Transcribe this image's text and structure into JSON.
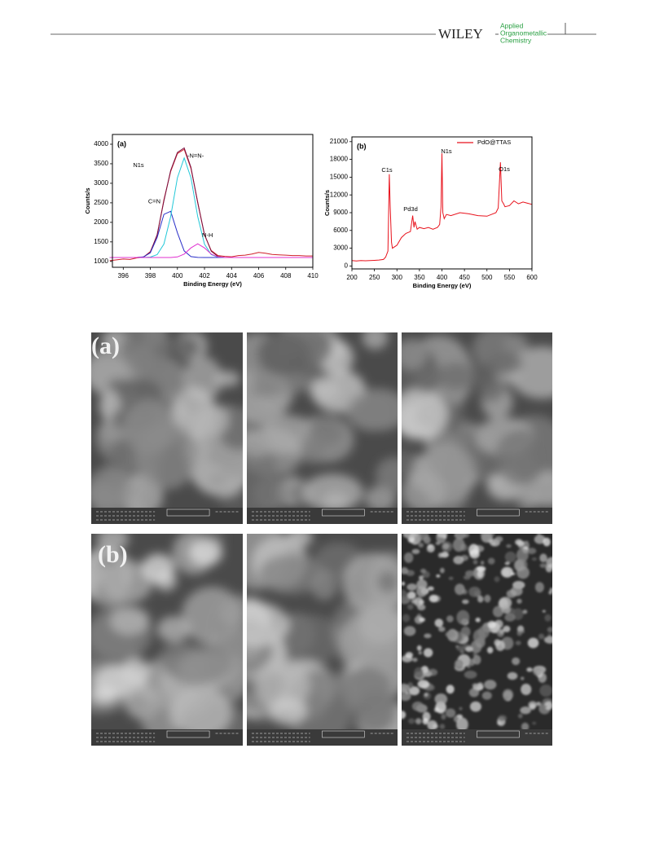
{
  "header": {
    "publisher": "WILEY",
    "journal_lines": [
      "Applied",
      "Organometallic",
      "Chemistry"
    ]
  },
  "chart_data": [
    {
      "type": "line",
      "panel": "(a)",
      "x_label": "Binding Energy (eV)",
      "y_label": "Counts/s",
      "annotations": [
        "N1s"
      ],
      "legend": false,
      "xlim": [
        395.2,
        410
      ],
      "ylim": [
        850,
        4250
      ],
      "xticks": [
        396,
        398,
        400,
        402,
        404,
        406,
        408,
        410
      ],
      "yticks": [
        1000,
        1500,
        2000,
        2500,
        3000,
        3500,
        4000
      ],
      "x": [
        395,
        395.5,
        396,
        396.5,
        397,
        397.5,
        398,
        398.5,
        399,
        399.5,
        400,
        400.5,
        401,
        401.5,
        402,
        402.5,
        403,
        403.5,
        404,
        404.5,
        405,
        405.5,
        406,
        406.5,
        407,
        407.5,
        408,
        408.5,
        409,
        409.5,
        410
      ],
      "series": [
        {
          "color": "#d0202a",
          "values": [
            1020,
            1040,
            1060,
            1050,
            1090,
            1110,
            1250,
            1660,
            2580,
            3300,
            3760,
            3870,
            3380,
            2520,
            1680,
            1280,
            1150,
            1130,
            1120,
            1150,
            1160,
            1190,
            1230,
            1210,
            1180,
            1170,
            1160,
            1150,
            1150,
            1140,
            1140
          ]
        },
        {
          "color": "#7a1040",
          "values": [
            1100,
            1100,
            1100,
            1100,
            1101,
            1114,
            1229,
            1687,
            2548,
            3330,
            3790,
            3906,
            3412,
            2500,
            1692,
            1260,
            1125,
            1100,
            1100,
            1100,
            1100,
            1100,
            1100,
            1100,
            1100,
            1100,
            1100,
            1100,
            1100,
            1100,
            1100
          ]
        },
        {
          "name": "C=N",
          "color": "#2a2fc8",
          "values": [
            1100,
            1100,
            1100,
            1100,
            1101,
            1114,
            1219,
            1614,
            2203,
            2282,
            1733,
            1269,
            1123,
            1102,
            1100,
            1100,
            1100,
            1100,
            1100,
            1100,
            1100,
            1100,
            1100,
            1100,
            1100,
            1100,
            1100,
            1100,
            1100,
            1100,
            1100
          ]
        },
        {
          "name": "-N=N-",
          "color": "#22c8d8",
          "values": [
            1100,
            1100,
            1100,
            1100,
            1100,
            1100,
            1110,
            1173,
            1445,
            2148,
            3142,
            3650,
            3142,
            2148,
            1445,
            1173,
            1110,
            1100,
            1100,
            1100,
            1100,
            1100,
            1100,
            1100,
            1100,
            1100,
            1100,
            1100,
            1100,
            1100,
            1100
          ]
        },
        {
          "name": "N-H",
          "color": "#e030d0",
          "values": [
            1100,
            1100,
            1100,
            1100,
            1100,
            1100,
            1100,
            1100,
            1100,
            1100,
            1115,
            1187,
            1347,
            1450,
            1347,
            1187,
            1115,
            1100,
            1100,
            1100,
            1100,
            1100,
            1100,
            1100,
            1100,
            1100,
            1100,
            1100,
            1100,
            1100,
            1100
          ]
        }
      ]
    },
    {
      "type": "line",
      "panel": "(b)",
      "x_label": "Binding Energy (eV)",
      "y_label": "Counts/s",
      "annotations": [
        "C1s",
        "Pd3d",
        "N1s",
        "O1s"
      ],
      "legend": "top-right",
      "xlim": [
        200,
        600
      ],
      "ylim": [
        -500,
        21800
      ],
      "xticks": [
        200,
        250,
        300,
        350,
        400,
        450,
        500,
        550,
        600
      ],
      "yticks": [
        0,
        3000,
        6000,
        9000,
        12000,
        15000,
        18000,
        21000
      ],
      "x": [
        200,
        210,
        220,
        230,
        240,
        250,
        260,
        270,
        275,
        280,
        283,
        285,
        288,
        290,
        300,
        310,
        320,
        330,
        335,
        338,
        340,
        345,
        350,
        360,
        370,
        380,
        390,
        395,
        398,
        400,
        402,
        405,
        410,
        420,
        440,
        460,
        480,
        500,
        520,
        525,
        530,
        533,
        537,
        540,
        550,
        560,
        570,
        580,
        590,
        600
      ],
      "series": [
        {
          "name": "PdO@TTAS",
          "color": "#e8121c",
          "values": [
            900,
            850,
            900,
            880,
            900,
            950,
            1000,
            1100,
            1500,
            2500,
            15500,
            10000,
            4000,
            3000,
            3500,
            4800,
            5500,
            5800,
            8500,
            6500,
            7500,
            6200,
            6500,
            6300,
            6500,
            6200,
            6500,
            7000,
            10000,
            19000,
            9000,
            8000,
            8700,
            8500,
            9000,
            8800,
            8500,
            8400,
            9000,
            9800,
            17500,
            11000,
            10500,
            10000,
            10200,
            11000,
            10500,
            10800,
            10600,
            10400
          ]
        }
      ]
    }
  ],
  "figure": {
    "panel_labels": [
      "(a)",
      "(b)"
    ]
  }
}
